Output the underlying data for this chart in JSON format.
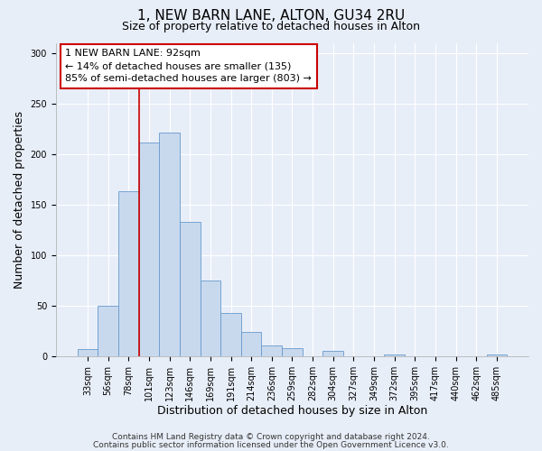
{
  "title": "1, NEW BARN LANE, ALTON, GU34 2RU",
  "subtitle": "Size of property relative to detached houses in Alton",
  "xlabel": "Distribution of detached houses by size in Alton",
  "ylabel": "Number of detached properties",
  "bar_labels": [
    "33sqm",
    "56sqm",
    "78sqm",
    "101sqm",
    "123sqm",
    "146sqm",
    "169sqm",
    "191sqm",
    "214sqm",
    "236sqm",
    "259sqm",
    "282sqm",
    "304sqm",
    "327sqm",
    "349sqm",
    "372sqm",
    "395sqm",
    "417sqm",
    "440sqm",
    "462sqm",
    "485sqm"
  ],
  "bar_values": [
    7,
    50,
    163,
    211,
    221,
    133,
    75,
    43,
    24,
    11,
    8,
    0,
    5,
    0,
    0,
    2,
    0,
    0,
    0,
    0,
    2
  ],
  "bar_color": "#c8d9ee",
  "bar_edge_color": "#6699cc",
  "vline_color": "#cc0000",
  "vline_x_index": 2.5,
  "annotation_title": "1 NEW BARN LANE: 92sqm",
  "annotation_line1": "← 14% of detached houses are smaller (135)",
  "annotation_line2": "85% of semi-detached houses are larger (803) →",
  "annotation_box_facecolor": "#ffffff",
  "annotation_box_edgecolor": "#cc0000",
  "ylim": [
    0,
    310
  ],
  "yticks": [
    0,
    50,
    100,
    150,
    200,
    250,
    300
  ],
  "footer1": "Contains HM Land Registry data © Crown copyright and database right 2024.",
  "footer2": "Contains public sector information licensed under the Open Government Licence v3.0.",
  "fig_facecolor": "#e8eef8",
  "plot_facecolor": "#e8eef8",
  "grid_color": "#ffffff",
  "title_fontsize": 11,
  "subtitle_fontsize": 9,
  "axis_label_fontsize": 9,
  "tick_fontsize": 7,
  "annotation_fontsize": 8,
  "footer_fontsize": 6.5
}
